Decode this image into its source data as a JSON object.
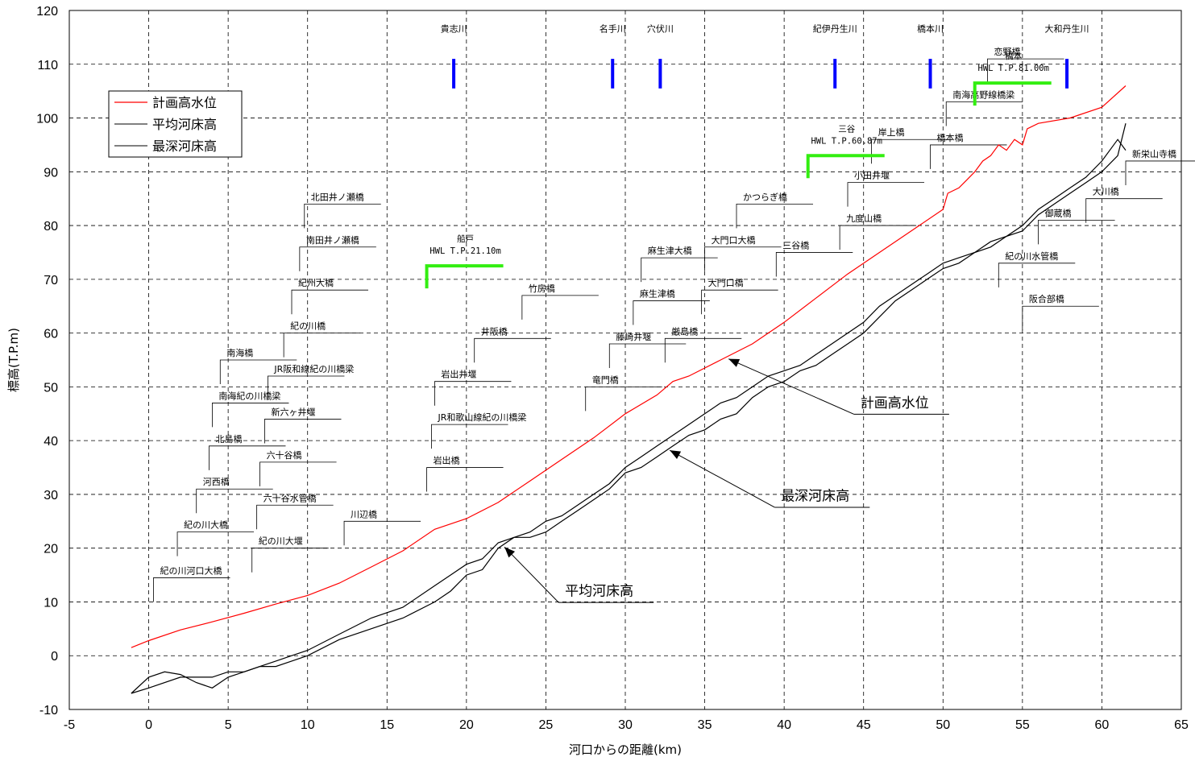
{
  "chart_data": {
    "type": "line",
    "xlabel": "河口からの距離(km)",
    "ylabel": "標高(T.P.m)",
    "xlim": [
      -5,
      65
    ],
    "ylim": [
      -10,
      120
    ],
    "x_ticks": [
      -5,
      0,
      5,
      10,
      15,
      20,
      25,
      30,
      35,
      40,
      45,
      50,
      55,
      60,
      65
    ],
    "y_ticks": [
      -10,
      0,
      10,
      20,
      30,
      40,
      50,
      60,
      70,
      80,
      90,
      100,
      110,
      120
    ],
    "x_tick_labels": [
      "-5",
      "0",
      "5",
      "10",
      "15",
      "20",
      "25",
      "30",
      "35",
      "40",
      "45",
      "50",
      "55",
      "60",
      "65"
    ],
    "y_tick_labels": [
      "-10",
      "0",
      "10",
      "20",
      "30",
      "40",
      "50",
      "60",
      "70",
      "80",
      "90",
      "100",
      "110",
      "120"
    ],
    "grid": "dashed",
    "legend_position": "top-left",
    "series": [
      {
        "name": "計画高水位",
        "color": "#ff0000",
        "x": [
          -1.1,
          0,
          2,
          4,
          6,
          8,
          10,
          12,
          14,
          16,
          18,
          20,
          22,
          24,
          26,
          28,
          30,
          32,
          33,
          34,
          36,
          38,
          40,
          42,
          44,
          46,
          48,
          50,
          50.3,
          51,
          51.5,
          52,
          52.5,
          53,
          53.5,
          54,
          54.5,
          55,
          55.3,
          56,
          58,
          60,
          61.5
        ],
        "y": [
          1.5,
          2.8,
          4.8,
          6.3,
          7.9,
          9.6,
          11.2,
          13.5,
          16.5,
          19.5,
          23.5,
          25.5,
          28.5,
          32.5,
          36.5,
          40.5,
          45,
          48.5,
          51,
          52,
          55,
          58,
          62,
          66.5,
          71,
          75,
          79,
          83,
          86,
          87,
          88.5,
          90,
          92,
          93,
          95,
          94,
          96,
          95,
          98,
          99,
          100,
          102,
          106
        ]
      },
      {
        "name": "平均河床高",
        "color": "#000000",
        "x": [
          -1.1,
          0,
          2,
          4,
          5,
          6,
          7,
          8,
          9,
          10,
          12,
          14,
          16,
          18,
          19,
          20,
          21,
          22,
          23,
          24,
          25,
          26,
          27,
          28,
          29,
          30,
          31,
          32,
          33,
          34,
          35,
          36,
          37,
          38,
          39,
          40,
          41,
          42,
          43,
          44,
          45,
          46,
          47,
          48,
          49,
          50,
          51,
          52,
          53,
          54,
          55,
          56,
          57,
          58,
          59,
          60,
          61,
          61.5
        ],
        "y": [
          -7,
          -6,
          -4,
          -4,
          -3,
          -3,
          -2,
          -1,
          0,
          1,
          4,
          7,
          9,
          13,
          15,
          17,
          18,
          21,
          22,
          23,
          25,
          26,
          28,
          30,
          32,
          35,
          37,
          39,
          41,
          43,
          45,
          47,
          48,
          50,
          52,
          53,
          54,
          56,
          58,
          60,
          62,
          65,
          67,
          69,
          71,
          73,
          74,
          75,
          77,
          78,
          80,
          83,
          85,
          87,
          89,
          92,
          96,
          94
        ]
      },
      {
        "name": "最深河床高",
        "color": "#000000",
        "x": [
          -1.1,
          0,
          1,
          2,
          3,
          4,
          5,
          6,
          7,
          8,
          9,
          10,
          12,
          14,
          16,
          18,
          19,
          20,
          21,
          22,
          23,
          24,
          25,
          26,
          27,
          28,
          29,
          30,
          31,
          32,
          33,
          34,
          35,
          36,
          37,
          38,
          39,
          40,
          41,
          42,
          43,
          44,
          45,
          46,
          47,
          48,
          49,
          50,
          51,
          52,
          53,
          54,
          55,
          56,
          57,
          58,
          59,
          60,
          61,
          61.5
        ],
        "y": [
          -7,
          -4,
          -3,
          -3.5,
          -5,
          -6,
          -4,
          -3,
          -2,
          -2,
          -1,
          0,
          3,
          5,
          7,
          10,
          12,
          15,
          16,
          20,
          22,
          22,
          23,
          25,
          27,
          29,
          31,
          34,
          35,
          37,
          39,
          41,
          42,
          44,
          45,
          48,
          50,
          51,
          53,
          54,
          56,
          58,
          60,
          63,
          66,
          68,
          70,
          72,
          73,
          75,
          76,
          78,
          79,
          82,
          84,
          86,
          88,
          90,
          93,
          99
        ]
      }
    ],
    "hwl_annotations": [
      {
        "location": "船戸",
        "text": "HWL T.P.21.10m",
        "x": 17.5,
        "y": 72.5
      },
      {
        "location": "三谷",
        "text": "HWL T.P.60.87m",
        "x": 41.5,
        "y": 93
      },
      {
        "location": "橋本",
        "text": "HWL T.P.81.00m",
        "x": 52,
        "y": 106.5
      }
    ],
    "tributaries": [
      "貴志川",
      "名手川",
      "穴伏川",
      "紀伊丹生川",
      "橋本川",
      "大和丹生川"
    ],
    "tributary_x": [
      19.2,
      29.2,
      32.2,
      43.2,
      49.2,
      57.8
    ],
    "bridge_labels": [
      {
        "name": "紀の川河口大橋",
        "x": 0.3,
        "y": 14.5
      },
      {
        "name": "紀の川大橋",
        "x": 1.8,
        "y": 23
      },
      {
        "name": "河西橋",
        "x": 3,
        "y": 31
      },
      {
        "name": "北島橋",
        "x": 3.8,
        "y": 39
      },
      {
        "name": "南海紀の川橋梁",
        "x": 4,
        "y": 47
      },
      {
        "name": "南海橋",
        "x": 4.5,
        "y": 55
      },
      {
        "name": "紀の川大堰",
        "x": 6.5,
        "y": 20
      },
      {
        "name": "六十谷水管橋",
        "x": 6.8,
        "y": 28
      },
      {
        "name": "六十谷橋",
        "x": 7,
        "y": 36
      },
      {
        "name": "新六ヶ井堰",
        "x": 7.3,
        "y": 44
      },
      {
        "name": "JR阪和線紀の川橋梁",
        "x": 7.5,
        "y": 52
      },
      {
        "name": "紀の川橋",
        "x": 8.5,
        "y": 60
      },
      {
        "name": "紀州大橋",
        "x": 9,
        "y": 68
      },
      {
        "name": "南田井ノ瀬橋",
        "x": 9.5,
        "y": 76
      },
      {
        "name": "北田井ノ瀬橋",
        "x": 9.8,
        "y": 84
      },
      {
        "name": "川辺橋",
        "x": 12.3,
        "y": 25
      },
      {
        "name": "岩出橋",
        "x": 17.5,
        "y": 35
      },
      {
        "name": "JR和歌山線紀の川橋梁",
        "x": 17.8,
        "y": 43
      },
      {
        "name": "岩出井堰",
        "x": 18,
        "y": 51
      },
      {
        "name": "井阪橋",
        "x": 20.5,
        "y": 59
      },
      {
        "name": "竹房橋",
        "x": 23.5,
        "y": 67
      },
      {
        "name": "竜門橋",
        "x": 27.5,
        "y": 50
      },
      {
        "name": "藤崎井堰",
        "x": 29,
        "y": 58
      },
      {
        "name": "麻生津橋",
        "x": 30.5,
        "y": 66
      },
      {
        "name": "麻生津大橋",
        "x": 31,
        "y": 74
      },
      {
        "name": "厳島橋",
        "x": 32.5,
        "y": 59
      },
      {
        "name": "大門口橋",
        "x": 34.8,
        "y": 68
      },
      {
        "name": "大門口大橋",
        "x": 35,
        "y": 76
      },
      {
        "name": "かつらぎ橋",
        "x": 37,
        "y": 84
      },
      {
        "name": "三谷橋",
        "x": 39.5,
        "y": 75
      },
      {
        "name": "九度山橋",
        "x": 43.5,
        "y": 80
      },
      {
        "name": "小田井堰",
        "x": 44,
        "y": 88
      },
      {
        "name": "岸上橋",
        "x": 45.5,
        "y": 96
      },
      {
        "name": "橋本橋",
        "x": 49.2,
        "y": 95
      },
      {
        "name": "南海高野線橋梁",
        "x": 50.2,
        "y": 103
      },
      {
        "name": "恋野橋",
        "x": 52.8,
        "y": 111
      },
      {
        "name": "紀の川水管橋",
        "x": 53.5,
        "y": 73
      },
      {
        "name": "阪合部橋",
        "x": 55,
        "y": 65
      },
      {
        "name": "御蔵橋",
        "x": 56,
        "y": 81
      },
      {
        "name": "大川橋",
        "x": 59,
        "y": 85
      },
      {
        "name": "新栄山寺橋",
        "x": 61.5,
        "y": 92
      }
    ],
    "callouts": [
      {
        "label": "計画高水位",
        "series": "計画高水位"
      },
      {
        "label": "最深河床高",
        "series": "最深河床高"
      },
      {
        "label": "平均河床高",
        "series": "平均河床高"
      }
    ],
    "legend": [
      "計画高水位",
      "平均河床高",
      "最深河床高"
    ]
  }
}
